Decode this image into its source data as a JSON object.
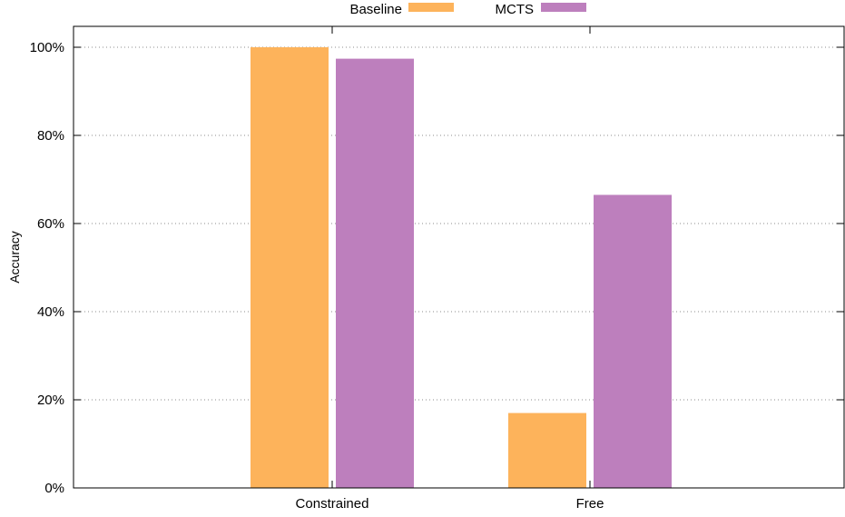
{
  "chart_data": {
    "type": "bar",
    "categories": [
      "Constrained",
      "Free"
    ],
    "series": [
      {
        "name": "Baseline",
        "color": "#fdb35b",
        "values": [
          100,
          17
        ]
      },
      {
        "name": "MCTS",
        "color": "#bd7fbd",
        "values": [
          97.4,
          66.5
        ]
      }
    ],
    "title": "",
    "xlabel": "",
    "ylabel": "Accuracy",
    "ylim": [
      0,
      100
    ],
    "yticks": [
      "0%",
      "20%",
      "40%",
      "60%",
      "80%",
      "100%"
    ],
    "ytick_values": [
      0,
      20,
      40,
      60,
      80,
      100
    ],
    "grid": true,
    "legend_position": "top-center"
  }
}
